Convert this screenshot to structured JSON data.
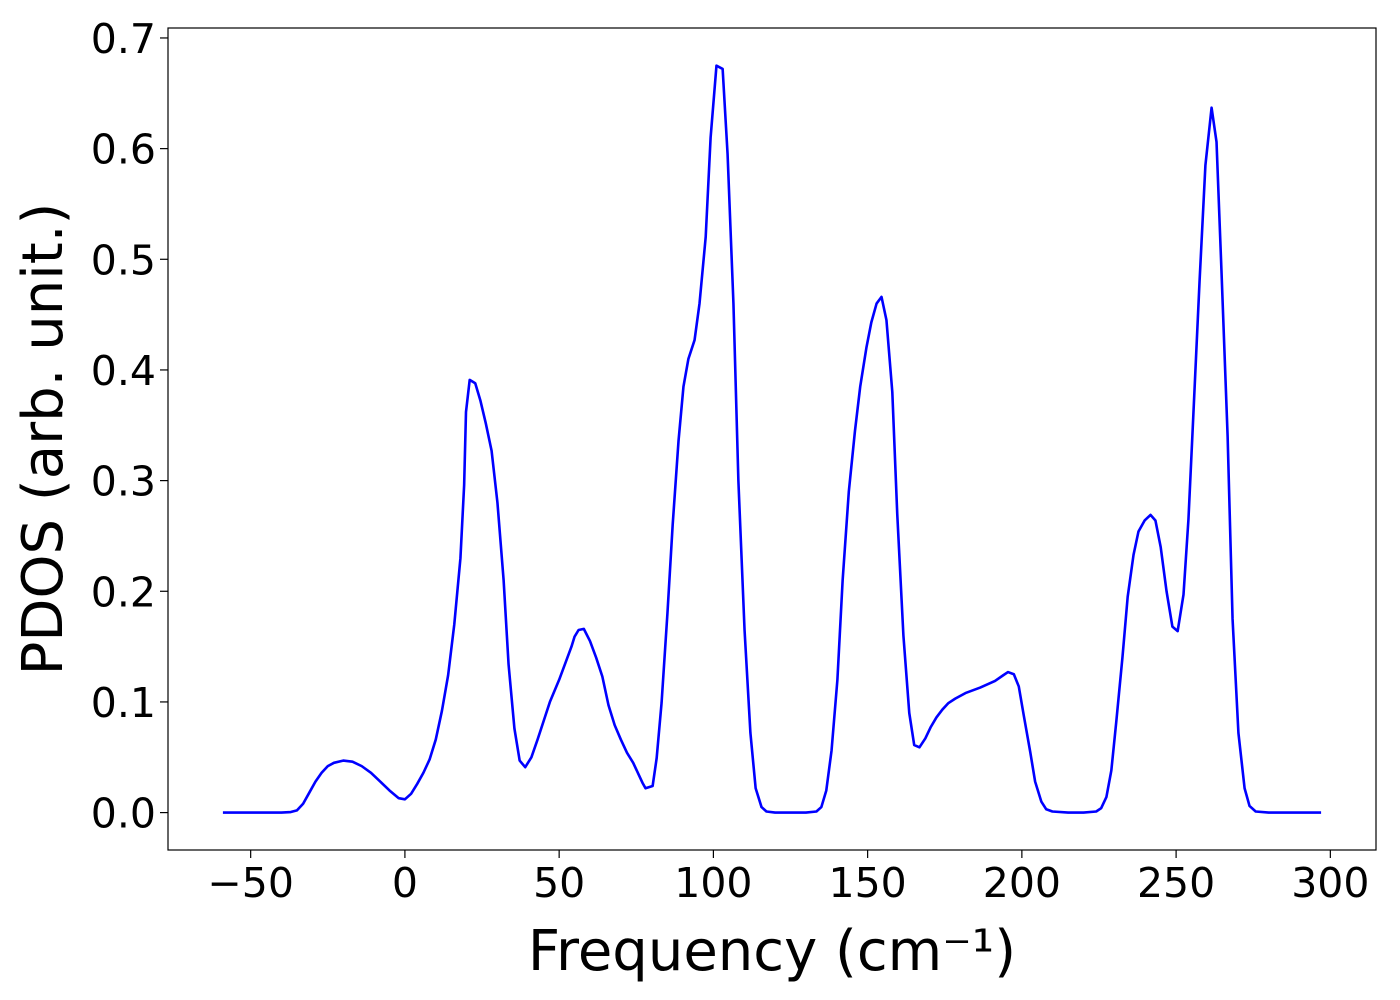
{
  "chart_data": {
    "type": "line",
    "xlabel": "Frequency (cm⁻¹)",
    "ylabel": "PDOS (arb. unit.)",
    "color": "#0000ff",
    "x": [
      -59,
      -50,
      -40,
      -37,
      -35,
      -33,
      -31,
      -29,
      -27,
      -25,
      -23,
      -20,
      -17,
      -14,
      -11,
      -8,
      -5,
      -2,
      0,
      2,
      4,
      6,
      8,
      10,
      12,
      14,
      16,
      18,
      19.2,
      19.8,
      21,
      22.8,
      24.5,
      26.2,
      28.1,
      30,
      32,
      33.6,
      35.5,
      37.2,
      39,
      41,
      43,
      45,
      47,
      50,
      52,
      54,
      55,
      56.3,
      58,
      60,
      62,
      64,
      66,
      68,
      70,
      72,
      74,
      76,
      77,
      78,
      80.3,
      81.6,
      83.2,
      85.1,
      86.8,
      88.7,
      90.3,
      91.9,
      93.9,
      95.5,
      97.5,
      99.1,
      101,
      103,
      104.6,
      106.5,
      108.1,
      110.1,
      112,
      113.7,
      115.6,
      117.2,
      120,
      125,
      130,
      133.4,
      135,
      136.6,
      138.3,
      140.2,
      141.9,
      143.9,
      145.9,
      147.6,
      149.6,
      151.2,
      152.9,
      154.5,
      156.1,
      158,
      159.6,
      161.6,
      163.5,
      165.1,
      166.8,
      168.7,
      170.4,
      172.3,
      174.2,
      176.2,
      178.4,
      181.7,
      186.5,
      191.3,
      193.9,
      195.5,
      197.4,
      199,
      200.6,
      202.7,
      204.3,
      206.3,
      207.9,
      209.9,
      215,
      220,
      224.1,
      225.7,
      227.4,
      229,
      230.6,
      232.6,
      234.3,
      236.2,
      237.8,
      239.8,
      241.7,
      243.3,
      245,
      246.9,
      248.8,
      250.5,
      252.4,
      254,
      255.6,
      257.6,
      259.5,
      261.5,
      263.1,
      264.7,
      266.7,
      268.3,
      270.2,
      272.2,
      273.8,
      275.8,
      280,
      290,
      297
    ],
    "values": [
      0,
      0,
      0,
      0.0005,
      0.002,
      0.008,
      0.018,
      0.028,
      0.036,
      0.042,
      0.045,
      0.047,
      0.046,
      0.042,
      0.036,
      0.028,
      0.02,
      0.013,
      0.012,
      0.017,
      0.026,
      0.036,
      0.048,
      0.066,
      0.092,
      0.124,
      0.17,
      0.23,
      0.296,
      0.362,
      0.391,
      0.388,
      0.372,
      0.352,
      0.327,
      0.28,
      0.21,
      0.134,
      0.076,
      0.047,
      0.041,
      0.05,
      0.066,
      0.083,
      0.1,
      0.12,
      0.135,
      0.15,
      0.159,
      0.165,
      0.166,
      0.155,
      0.14,
      0.123,
      0.097,
      0.079,
      0.066,
      0.054,
      0.045,
      0.033,
      0.027,
      0.022,
      0.024,
      0.049,
      0.099,
      0.18,
      0.26,
      0.336,
      0.385,
      0.41,
      0.427,
      0.46,
      0.52,
      0.61,
      0.675,
      0.672,
      0.595,
      0.46,
      0.3,
      0.165,
      0.072,
      0.022,
      0.005,
      0.001,
      0,
      0,
      0,
      0.001,
      0.005,
      0.02,
      0.056,
      0.12,
      0.21,
      0.29,
      0.345,
      0.385,
      0.42,
      0.443,
      0.46,
      0.466,
      0.445,
      0.38,
      0.27,
      0.16,
      0.09,
      0.061,
      0.059,
      0.067,
      0.077,
      0.086,
      0.093,
      0.099,
      0.103,
      0.108,
      0.113,
      0.119,
      0.124,
      0.127,
      0.125,
      0.114,
      0.088,
      0.055,
      0.028,
      0.01,
      0.003,
      0.001,
      0,
      0,
      0.001,
      0.004,
      0.014,
      0.038,
      0.082,
      0.14,
      0.195,
      0.233,
      0.254,
      0.264,
      0.269,
      0.264,
      0.24,
      0.2,
      0.168,
      0.164,
      0.197,
      0.265,
      0.36,
      0.48,
      0.585,
      0.637,
      0.606,
      0.49,
      0.34,
      0.175,
      0.072,
      0.022,
      0.006,
      0.001,
      0,
      0,
      0
    ],
    "xlim": [
      -76.8,
      314.8
    ],
    "xticks": [
      {
        "value": -50,
        "label": "−50"
      },
      0,
      50,
      100,
      150,
      200,
      250,
      300
    ],
    "ylim": [
      -0.0338,
      0.709
    ],
    "yticks": [
      {
        "value": 0,
        "label": "0.0"
      },
      0.1,
      0.2,
      0.3,
      0.4,
      0.5,
      0.6,
      0.7
    ]
  }
}
